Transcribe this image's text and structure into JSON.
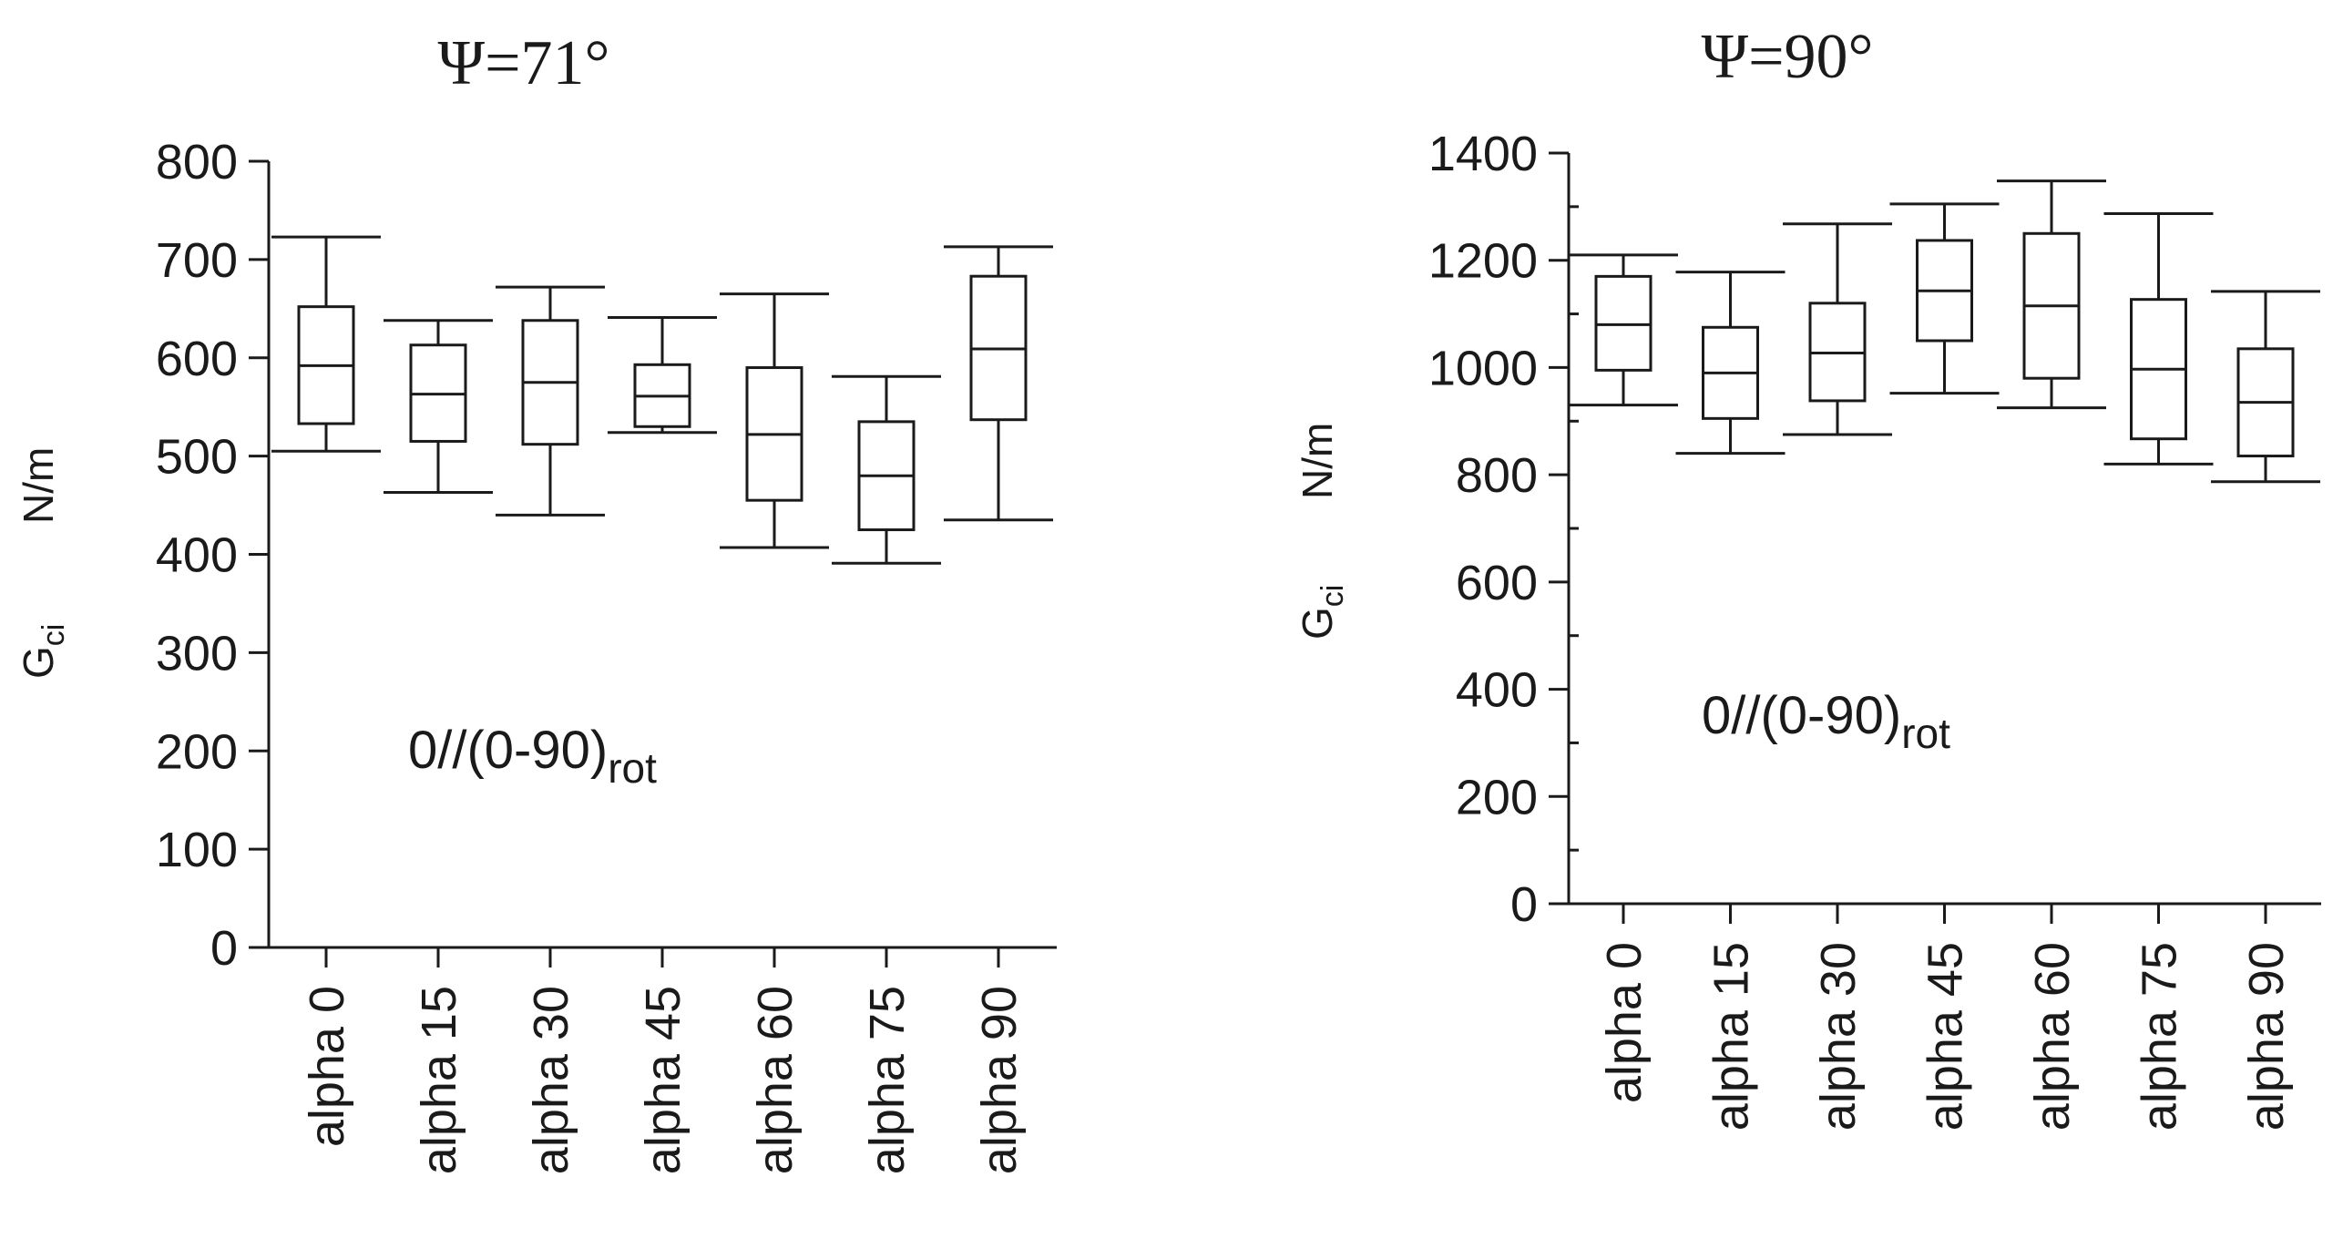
{
  "chart_data": [
    {
      "type": "box",
      "title": "Ψ=71°",
      "ylabel_main": "G",
      "ylabel_sub": "ci",
      "ylabel_unit": "N/m",
      "annotation_main": "0//(0-90)",
      "annotation_sub": "rot",
      "ylim": [
        0,
        800
      ],
      "yticks": [
        0,
        100,
        200,
        300,
        400,
        500,
        600,
        700,
        800
      ],
      "categories": [
        "alpha 0",
        "alpha 15",
        "alpha 30",
        "alpha 45",
        "alpha 60",
        "alpha 75",
        "alpha 90"
      ],
      "boxes": [
        {
          "min": 505,
          "q1": 533,
          "median": 592,
          "q3": 652,
          "max": 723
        },
        {
          "min": 463,
          "q1": 515,
          "median": 563,
          "q3": 613,
          "max": 638
        },
        {
          "min": 440,
          "q1": 512,
          "median": 575,
          "q3": 638,
          "max": 672
        },
        {
          "min": 524,
          "q1": 530,
          "median": 561,
          "q3": 593,
          "max": 641
        },
        {
          "min": 407,
          "q1": 455,
          "median": 522,
          "q3": 590,
          "max": 665
        },
        {
          "min": 391,
          "q1": 425,
          "median": 480,
          "q3": 535,
          "max": 581
        },
        {
          "min": 435,
          "q1": 537,
          "median": 609,
          "q3": 683,
          "max": 713
        }
      ]
    },
    {
      "type": "box",
      "title": "Ψ=90°",
      "ylabel_main": "G",
      "ylabel_sub": "ci",
      "ylabel_unit": "N/m",
      "annotation_main": "0//(0-90)",
      "annotation_sub": "rot",
      "ylim": [
        0,
        1400
      ],
      "yticks": [
        0,
        200,
        400,
        600,
        800,
        1000,
        1200,
        1400
      ],
      "minor_step": 100,
      "categories": [
        "alpha 0",
        "alpha 15",
        "alpha 30",
        "alpha 45",
        "alpha 60",
        "alpha 75",
        "alpha 90"
      ],
      "boxes": [
        {
          "min": 930,
          "q1": 995,
          "median": 1080,
          "q3": 1170,
          "max": 1210
        },
        {
          "min": 840,
          "q1": 905,
          "median": 990,
          "q3": 1075,
          "max": 1178
        },
        {
          "min": 875,
          "q1": 938,
          "median": 1027,
          "q3": 1120,
          "max": 1268
        },
        {
          "min": 952,
          "q1": 1050,
          "median": 1143,
          "q3": 1237,
          "max": 1305
        },
        {
          "min": 925,
          "q1": 980,
          "median": 1115,
          "q3": 1250,
          "max": 1348
        },
        {
          "min": 820,
          "q1": 867,
          "median": 997,
          "q3": 1127,
          "max": 1287
        },
        {
          "min": 787,
          "q1": 835,
          "median": 935,
          "q3": 1035,
          "max": 1142
        }
      ]
    }
  ]
}
